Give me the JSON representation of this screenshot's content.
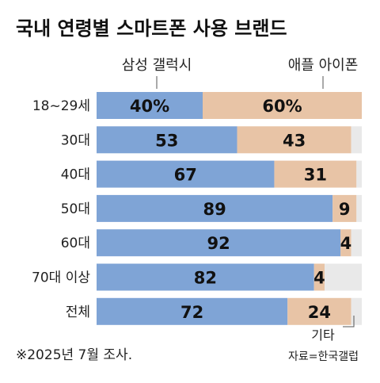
{
  "chart_data": {
    "type": "bar",
    "stacked": true,
    "orientation": "horizontal",
    "title": "국내 연령별 스마트폰 사용 브랜드",
    "categories": [
      "18~29세",
      "30대",
      "40대",
      "50대",
      "60대",
      "70대 이상",
      "전체"
    ],
    "series": [
      {
        "name": "삼성 갤럭시",
        "values": [
          40,
          53,
          67,
          89,
          92,
          82,
          72
        ],
        "labels": [
          "40%",
          "53",
          "67",
          "89",
          "92",
          "82",
          "72"
        ],
        "color": "#7fa4d6"
      },
      {
        "name": "애플 아이폰",
        "values": [
          60,
          43,
          31,
          9,
          4,
          4,
          24
        ],
        "labels": [
          "60%",
          "43",
          "31",
          "9",
          "4",
          "4",
          "24"
        ],
        "color": "#e8c4a6"
      },
      {
        "name": "기타",
        "values": [
          0,
          4,
          2,
          2,
          4,
          14,
          4
        ],
        "color": "#e9e9e9"
      }
    ],
    "xlim": [
      0,
      100
    ],
    "footnote": "※2025년 7월 조사.",
    "source": "자료=한국갤럽"
  }
}
